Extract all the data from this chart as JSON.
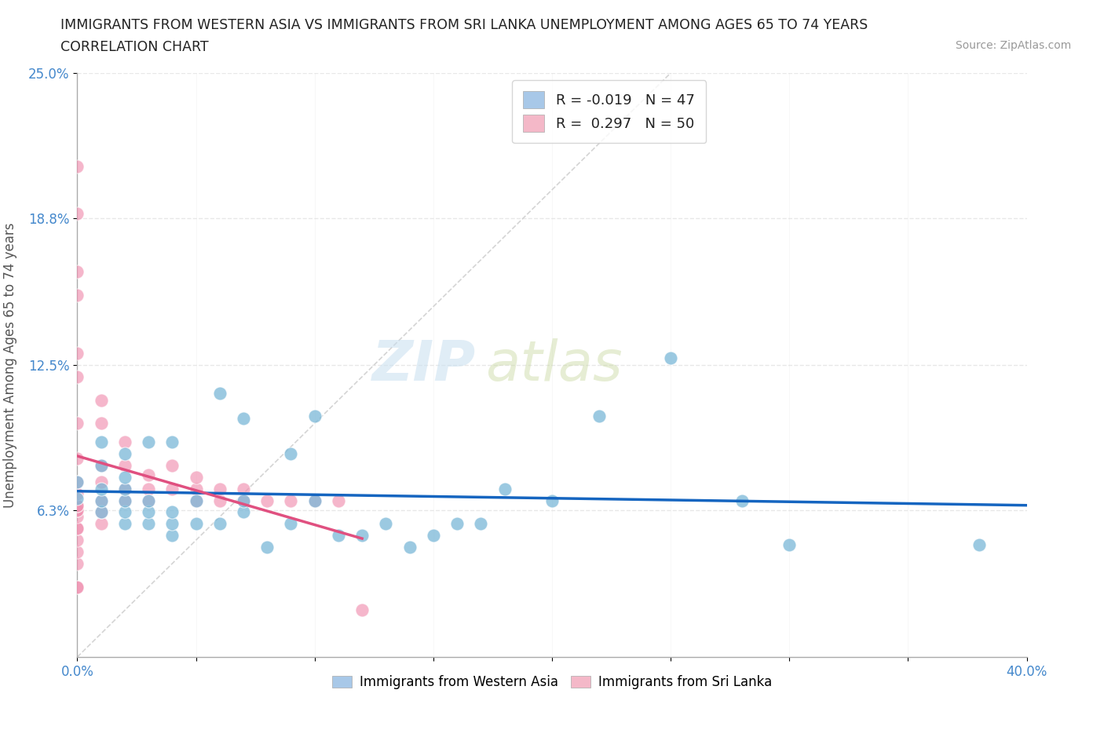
{
  "title_line1": "IMMIGRANTS FROM WESTERN ASIA VS IMMIGRANTS FROM SRI LANKA UNEMPLOYMENT AMONG AGES 65 TO 74 YEARS",
  "title_line2": "CORRELATION CHART",
  "source_text": "Source: ZipAtlas.com",
  "ylabel": "Unemployment Among Ages 65 to 74 years",
  "xlim": [
    0.0,
    0.4
  ],
  "ylim": [
    0.0,
    0.25
  ],
  "xtick_positions": [
    0.0,
    0.05,
    0.1,
    0.15,
    0.2,
    0.25,
    0.3,
    0.35,
    0.4
  ],
  "xticklabels": [
    "0.0%",
    "",
    "",
    "",
    "",
    "",
    "",
    "",
    "40.0%"
  ],
  "ytick_positions": [
    0.063,
    0.125,
    0.188,
    0.25
  ],
  "ytick_labels": [
    "6.3%",
    "12.5%",
    "18.8%",
    "25.0%"
  ],
  "legend_top_entries": [
    {
      "label": "R = -0.019   N = 47",
      "color": "#a8c8e8"
    },
    {
      "label": "R =  0.297   N = 50",
      "color": "#f4b8c8"
    }
  ],
  "legend_bot_entries": [
    {
      "label": "Immigrants from Western Asia",
      "color": "#a8c8e8"
    },
    {
      "label": "Immigrants from Sri Lanka",
      "color": "#f4b8c8"
    }
  ],
  "watermark_part1": "ZIP",
  "watermark_part2": "atlas",
  "blue_scatter_color": "#7ab8d8",
  "pink_scatter_color": "#f090b0",
  "blue_line_color": "#1565C0",
  "pink_line_color": "#e05080",
  "diag_line_color": "#d0d0d0",
  "grid_color": "#e8e8e8",
  "tick_color": "#4488cc",
  "background_color": "#ffffff",
  "western_asia_x": [
    0.0,
    0.0,
    0.01,
    0.01,
    0.01,
    0.01,
    0.01,
    0.02,
    0.02,
    0.02,
    0.02,
    0.02,
    0.02,
    0.03,
    0.03,
    0.03,
    0.03,
    0.04,
    0.04,
    0.04,
    0.04,
    0.05,
    0.05,
    0.06,
    0.06,
    0.07,
    0.07,
    0.07,
    0.08,
    0.09,
    0.09,
    0.1,
    0.1,
    0.11,
    0.12,
    0.13,
    0.14,
    0.15,
    0.16,
    0.17,
    0.18,
    0.2,
    0.22,
    0.25,
    0.28,
    0.3,
    0.38
  ],
  "western_asia_y": [
    0.068,
    0.075,
    0.062,
    0.067,
    0.072,
    0.082,
    0.092,
    0.057,
    0.062,
    0.067,
    0.072,
    0.077,
    0.087,
    0.057,
    0.062,
    0.067,
    0.092,
    0.052,
    0.057,
    0.062,
    0.092,
    0.057,
    0.067,
    0.057,
    0.113,
    0.062,
    0.067,
    0.102,
    0.047,
    0.057,
    0.087,
    0.067,
    0.103,
    0.052,
    0.052,
    0.057,
    0.047,
    0.052,
    0.057,
    0.057,
    0.072,
    0.067,
    0.103,
    0.128,
    0.067,
    0.048,
    0.048
  ],
  "sri_lanka_x": [
    0.0,
    0.0,
    0.0,
    0.0,
    0.0,
    0.0,
    0.0,
    0.0,
    0.0,
    0.0,
    0.0,
    0.0,
    0.0,
    0.0,
    0.0,
    0.0,
    0.0,
    0.0,
    0.0,
    0.0,
    0.0,
    0.0,
    0.01,
    0.01,
    0.01,
    0.01,
    0.01,
    0.01,
    0.01,
    0.02,
    0.02,
    0.02,
    0.02,
    0.03,
    0.03,
    0.03,
    0.04,
    0.04,
    0.05,
    0.05,
    0.05,
    0.06,
    0.06,
    0.07,
    0.07,
    0.08,
    0.09,
    0.1,
    0.11,
    0.12
  ],
  "sri_lanka_y": [
    0.03,
    0.03,
    0.04,
    0.045,
    0.05,
    0.055,
    0.055,
    0.06,
    0.063,
    0.063,
    0.065,
    0.065,
    0.07,
    0.075,
    0.085,
    0.1,
    0.12,
    0.13,
    0.155,
    0.165,
    0.19,
    0.21,
    0.057,
    0.062,
    0.067,
    0.075,
    0.082,
    0.1,
    0.11,
    0.067,
    0.072,
    0.082,
    0.092,
    0.067,
    0.072,
    0.078,
    0.072,
    0.082,
    0.067,
    0.072,
    0.077,
    0.067,
    0.072,
    0.067,
    0.072,
    0.067,
    0.067,
    0.067,
    0.067,
    0.02
  ]
}
